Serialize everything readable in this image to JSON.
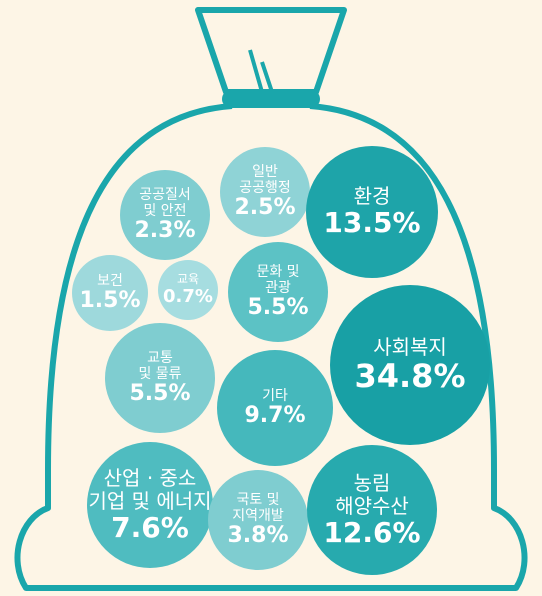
{
  "chart_data": {
    "type": "bubble",
    "categories": [
      "공공질서\n및 안전",
      "일반\n공공행정",
      "환경",
      "보건",
      "교육",
      "문화 및\n관광",
      "사회복지",
      "교통\n및 물류",
      "기타",
      "산업 · 중소\n기업 및 에너지",
      "국토 및\n지역개발",
      "농림\n해양수산"
    ],
    "values": [
      2.3,
      2.5,
      13.5,
      1.5,
      0.7,
      5.5,
      34.8,
      5.5,
      9.7,
      7.6,
      3.8,
      12.6
    ],
    "value_labels": [
      "2.3%",
      "2.5%",
      "13.5%",
      "1.5%",
      "0.7%",
      "5.5%",
      "34.8%",
      "5.5%",
      "9.7%",
      "7.6%",
      "3.8%",
      "12.6%"
    ],
    "colors": [
      "#7fcdd0",
      "#8fd3d6",
      "#1ea4a9",
      "#9ed9dc",
      "#a6dde0",
      "#5cc2c5",
      "#18a0a5",
      "#7fcdd0",
      "#45b8bc",
      "#4fbcc0",
      "#7fcdd0",
      "#27aaae"
    ]
  }
}
